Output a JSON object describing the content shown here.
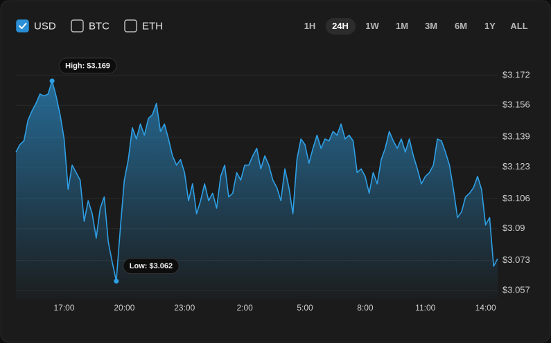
{
  "toolbar": {
    "currencies": [
      {
        "label": "USD",
        "checked": true
      },
      {
        "label": "BTC",
        "checked": false
      },
      {
        "label": "ETH",
        "checked": false
      }
    ],
    "ranges": [
      "1H",
      "24H",
      "1W",
      "1M",
      "3M",
      "6M",
      "1Y",
      "ALL"
    ],
    "active_range": "24H"
  },
  "chart_data": {
    "type": "area",
    "color": "#2ea0e6",
    "x": [
      "14:36",
      "14:48",
      "15:00",
      "15:12",
      "15:24",
      "15:36",
      "15:48",
      "16:00",
      "16:12",
      "16:24",
      "16:36",
      "16:48",
      "17:00",
      "17:12",
      "17:24",
      "17:36",
      "17:48",
      "18:00",
      "18:12",
      "18:24",
      "18:36",
      "18:48",
      "19:00",
      "19:12",
      "19:24",
      "19:36",
      "19:48",
      "20:00",
      "20:12",
      "20:24",
      "20:36",
      "20:48",
      "21:00",
      "21:12",
      "21:24",
      "21:36",
      "21:48",
      "22:00",
      "22:12",
      "22:24",
      "22:36",
      "22:48",
      "23:00",
      "23:12",
      "23:24",
      "23:36",
      "23:48",
      "0:00",
      "0:12",
      "0:24",
      "0:36",
      "0:48",
      "1:00",
      "1:12",
      "1:24",
      "1:36",
      "1:48",
      "2:00",
      "2:12",
      "2:24",
      "2:36",
      "2:48",
      "3:00",
      "3:12",
      "3:24",
      "3:36",
      "3:48",
      "4:00",
      "4:12",
      "4:24",
      "4:36",
      "4:48",
      "5:00",
      "5:12",
      "5:24",
      "5:36",
      "5:48",
      "6:00",
      "6:12",
      "6:24",
      "6:36",
      "6:48",
      "7:00",
      "7:12",
      "7:24",
      "7:36",
      "7:48",
      "8:00",
      "8:12",
      "8:24",
      "8:36",
      "8:48",
      "9:00",
      "9:12",
      "9:24",
      "9:36",
      "9:48",
      "10:00",
      "10:12",
      "10:24",
      "10:36",
      "10:48",
      "11:00",
      "11:12",
      "11:24",
      "11:36",
      "11:48",
      "12:00",
      "12:12",
      "12:24",
      "12:36",
      "12:48",
      "13:00",
      "13:12",
      "13:24",
      "13:36",
      "13:48",
      "14:00",
      "14:12",
      "14:24",
      "14:36"
    ],
    "values": [
      3.131,
      3.135,
      3.137,
      3.148,
      3.153,
      3.157,
      3.162,
      3.161,
      3.162,
      3.169,
      3.161,
      3.151,
      3.138,
      3.111,
      3.124,
      3.12,
      3.116,
      3.094,
      3.105,
      3.098,
      3.085,
      3.101,
      3.107,
      3.083,
      3.072,
      3.062,
      3.09,
      3.116,
      3.127,
      3.144,
      3.138,
      3.146,
      3.14,
      3.149,
      3.151,
      3.157,
      3.142,
      3.146,
      3.138,
      3.129,
      3.124,
      3.127,
      3.12,
      3.105,
      3.114,
      3.098,
      3.105,
      3.114,
      3.105,
      3.109,
      3.101,
      3.118,
      3.124,
      3.107,
      3.109,
      3.12,
      3.116,
      3.124,
      3.124,
      3.129,
      3.133,
      3.122,
      3.129,
      3.124,
      3.116,
      3.112,
      3.105,
      3.122,
      3.112,
      3.098,
      3.127,
      3.138,
      3.135,
      3.125,
      3.133,
      3.14,
      3.133,
      3.138,
      3.137,
      3.142,
      3.14,
      3.146,
      3.138,
      3.14,
      3.137,
      3.12,
      3.122,
      3.118,
      3.109,
      3.12,
      3.114,
      3.127,
      3.133,
      3.142,
      3.137,
      3.133,
      3.138,
      3.131,
      3.138,
      3.129,
      3.122,
      3.114,
      3.118,
      3.12,
      3.124,
      3.138,
      3.137,
      3.131,
      3.124,
      3.111,
      3.096,
      3.099,
      3.107,
      3.109,
      3.112,
      3.118,
      3.111,
      3.092,
      3.096,
      3.07,
      3.074
    ],
    "ylim": [
      3.0526,
      3.179
    ],
    "yticks": [
      {
        "value": 3.172,
        "label": "$3.172"
      },
      {
        "value": 3.156,
        "label": "$3.156"
      },
      {
        "value": 3.139,
        "label": "$3.139"
      },
      {
        "value": 3.123,
        "label": "$3.123"
      },
      {
        "value": 3.106,
        "label": "$3.106"
      },
      {
        "value": 3.09,
        "label": "$3.09"
      },
      {
        "value": 3.073,
        "label": "$3.073"
      },
      {
        "value": 3.057,
        "label": "$3.057"
      }
    ],
    "xticks": [
      "17:00",
      "20:00",
      "23:00",
      "2:00",
      "5:00",
      "8:00",
      "11:00",
      "14:00"
    ],
    "grid": true,
    "high_label": "High: $3.169",
    "low_label": "Low: $3.062"
  }
}
